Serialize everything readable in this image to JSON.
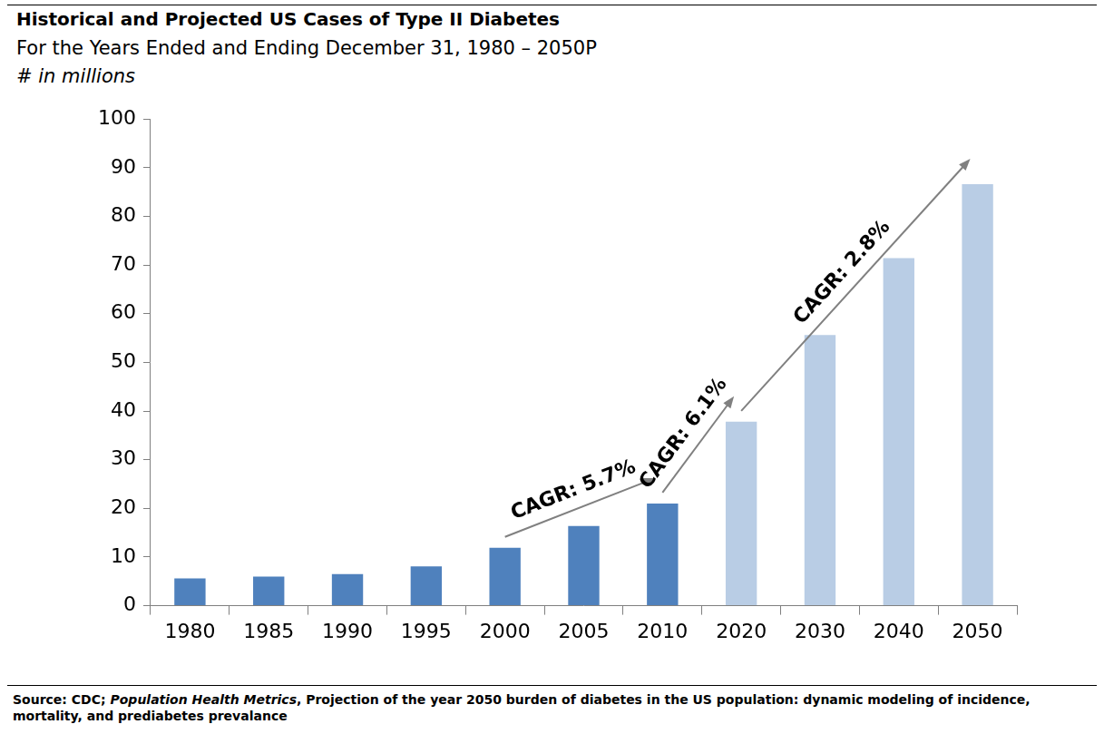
{
  "chart_data": {
    "type": "bar",
    "title": "Historical and Projected US Cases of Type II Diabetes",
    "subtitle": "For the Years Ended and Ending December 31, 1980 – 2050P",
    "y_label": "# in millions",
    "categories": [
      "1980",
      "1985",
      "1990",
      "1995",
      "2000",
      "2005",
      "2010",
      "2020",
      "2030",
      "2040",
      "2050"
    ],
    "values": [
      5.6,
      6.0,
      6.5,
      8.1,
      11.9,
      16.4,
      21.0,
      37.8,
      55.6,
      71.4,
      86.6
    ],
    "colors": [
      "#4f81bd",
      "#4f81bd",
      "#4f81bd",
      "#4f81bd",
      "#4f81bd",
      "#4f81bd",
      "#4f81bd",
      "#b9cde5",
      "#b9cde5",
      "#b9cde5",
      "#b9cde5"
    ],
    "ylim": [
      0,
      100
    ],
    "yticks": [
      0,
      10,
      20,
      30,
      40,
      50,
      60,
      70,
      80,
      90,
      100
    ],
    "grid": false,
    "annotations": [
      {
        "text": "CAGR: 5.7%",
        "from": "2000",
        "to": "2010"
      },
      {
        "text": "CAGR: 6.1%",
        "from": "2010",
        "to": "2020"
      },
      {
        "text": "CAGR: 2.8%",
        "from": "2020",
        "to": "2050"
      }
    ],
    "source": {
      "prefix": "Source: CDC; ",
      "journal": "Population Health Metrics",
      "rest": ", Projection of the year 2050 burden of diabetes in the US population: dynamic modeling of incidence, mortality, and prediabetes prevalance"
    }
  }
}
